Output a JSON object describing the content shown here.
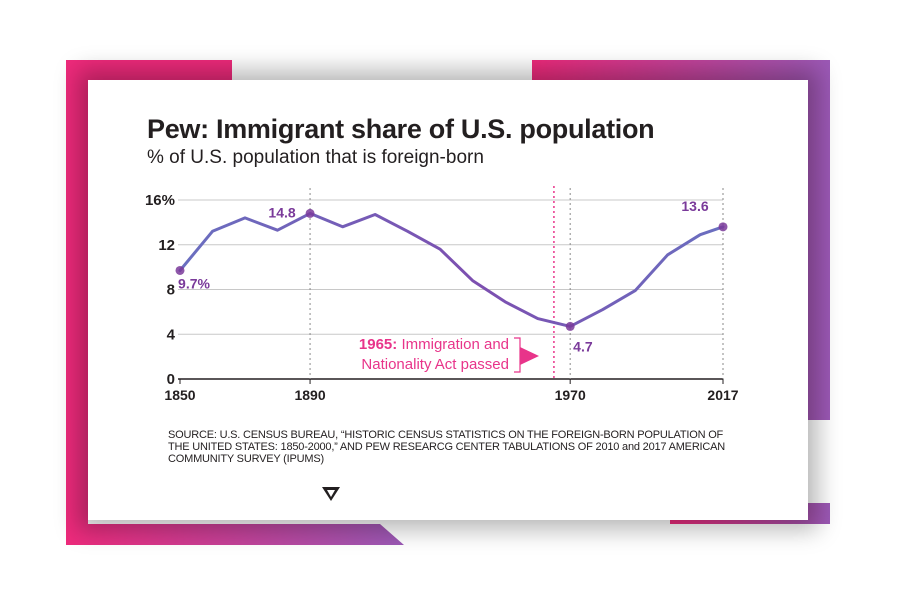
{
  "title": "Pew: Immigrant share of U.S. population",
  "subtitle": "% of U.S. population that is foreign-born",
  "source": "SOURCE: U.S. CENSUS BUREAU, “HISTORIC CENSUS STATISTICS ON THE FOREIGN-BORN POPULATION OF THE UNITED STATES: 1850-2000,” AND PEW RESEARCG CENTER TABULATIONS OF 2010 and 2017 AMERICAN COMMUNITY SURVEY (IPUMS)",
  "colors": {
    "line_start": "#6a6fc0",
    "line_mid": "#7d4fb0",
    "marker": "#7a3a9a",
    "annotation": "#e8348a",
    "frame_pink": "#ee2a7b",
    "frame_purple": "#9b59b6"
  },
  "chart_data": {
    "type": "line",
    "x": [
      1850,
      1860,
      1870,
      1880,
      1890,
      1900,
      1910,
      1920,
      1930,
      1940,
      1950,
      1960,
      1970,
      1980,
      1990,
      2000,
      2010,
      2017
    ],
    "series": [
      {
        "values": [
          9.7,
          13.2,
          14.4,
          13.3,
          14.8,
          13.6,
          14.7,
          13.2,
          11.6,
          8.8,
          6.9,
          5.4,
          4.7,
          6.2,
          7.9,
          11.1,
          12.9,
          13.6
        ]
      }
    ],
    "ylim": [
      0,
      16
    ],
    "yticks": [
      0,
      4,
      8,
      12,
      16
    ],
    "ytick_labels": [
      "0",
      "4",
      "8",
      "12",
      "16%"
    ],
    "xticks": [
      1850,
      1890,
      1970,
      2017
    ],
    "xtick_labels": [
      "1850",
      "1890",
      "1970",
      "2017"
    ],
    "data_labels": [
      {
        "x": 1850,
        "text": "9.7%"
      },
      {
        "x": 1890,
        "text": "14.8"
      },
      {
        "x": 1970,
        "text": "4.7"
      },
      {
        "x": 2017,
        "text": "13.6"
      }
    ],
    "annotation": {
      "x": 1965,
      "line1_bold": "1965:",
      "line1_rest": " Immigration and",
      "line2": "Nationality Act passed"
    },
    "grid": true
  }
}
